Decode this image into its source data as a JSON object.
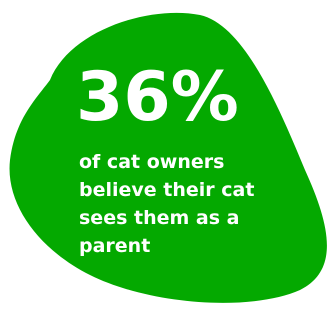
{
  "stat": {
    "value": "36%",
    "caption": "of cat owners believe their cat sees them as a parent"
  },
  "colors": {
    "blob": "#04a900",
    "text": "#ffffff",
    "background": "#ffffff"
  }
}
